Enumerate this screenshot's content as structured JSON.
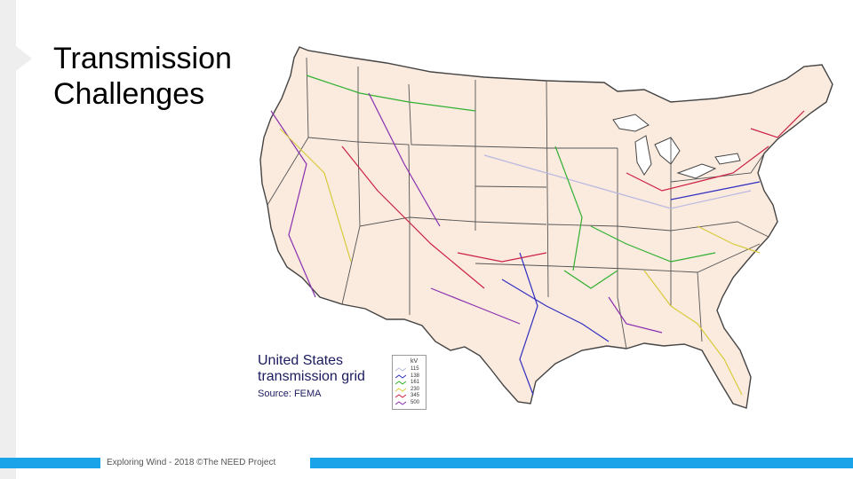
{
  "slide": {
    "title_line1": "Transmission",
    "title_line2": "Challenges"
  },
  "map": {
    "legend_title_line1": "United States",
    "legend_title_line2": "transmission grid",
    "legend_source": "Source: FEMA",
    "kv_header": "kV",
    "kv_levels": [
      {
        "label": "115",
        "color": "#b9b9e0"
      },
      {
        "label": "138",
        "color": "#3030c0"
      },
      {
        "label": "161",
        "color": "#30b030"
      },
      {
        "label": "230",
        "color": "#d7cc3a"
      },
      {
        "label": "345",
        "color": "#cc2244"
      },
      {
        "label": "500",
        "color": "#8a2fb0"
      }
    ],
    "colors": {
      "land": "#fbeade",
      "border": "#555555",
      "water": "#ffffff"
    }
  },
  "footer": {
    "text": "Exploring Wind - 2018 ©The NEED Project",
    "accent": "#1aa3e8"
  }
}
